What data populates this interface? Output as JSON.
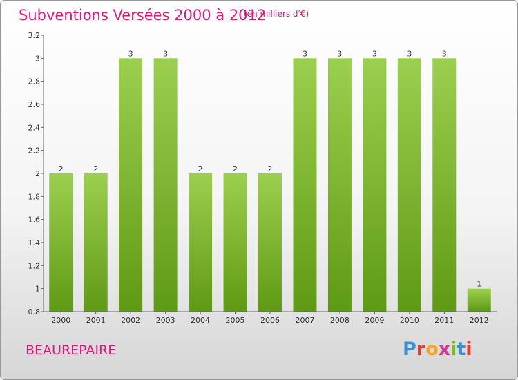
{
  "header": {
    "title": "Subventions Versées 2000 à 2012",
    "subtitle": "(en milliers d'€)"
  },
  "footer": {
    "commune": "BEAUREPAIRE",
    "logo_letters": [
      "P",
      "r",
      "o",
      "x",
      "i",
      "t",
      "i"
    ],
    "logo_colors": [
      "#3c8fd0",
      "#e53a2c",
      "#f5a623",
      "#d63b8f",
      "#7cbb2e",
      "#3c8fd0",
      "#e53a2c"
    ]
  },
  "chart_data": {
    "type": "bar",
    "categories": [
      "2000",
      "2001",
      "2002",
      "2003",
      "2004",
      "2005",
      "2006",
      "2007",
      "2008",
      "2009",
      "2010",
      "2011",
      "2012"
    ],
    "values": [
      2,
      2,
      3,
      3,
      2,
      2,
      2,
      3,
      3,
      3,
      3,
      3,
      1
    ],
    "data_labels": [
      "2",
      "2",
      "3",
      "3",
      "2",
      "2",
      "2",
      "3",
      "3",
      "3",
      "3",
      "3",
      "1"
    ],
    "ylim": [
      0.8,
      3.2
    ],
    "yticks": [
      0.8,
      1,
      1.2,
      1.4,
      1.6,
      1.8,
      2,
      2.2,
      2.4,
      2.6,
      2.8,
      3,
      3.2
    ],
    "ytick_labels": [
      "0.8",
      "1",
      "1.2",
      "1.4",
      "1.6",
      "1.8",
      "2",
      "2.2",
      "2.4",
      "2.6",
      "2.8",
      "3",
      "3.2"
    ],
    "colors": {
      "bar_top": "#9ccf4f",
      "bar_bottom": "#5f9a14",
      "axis": "#666666"
    }
  }
}
